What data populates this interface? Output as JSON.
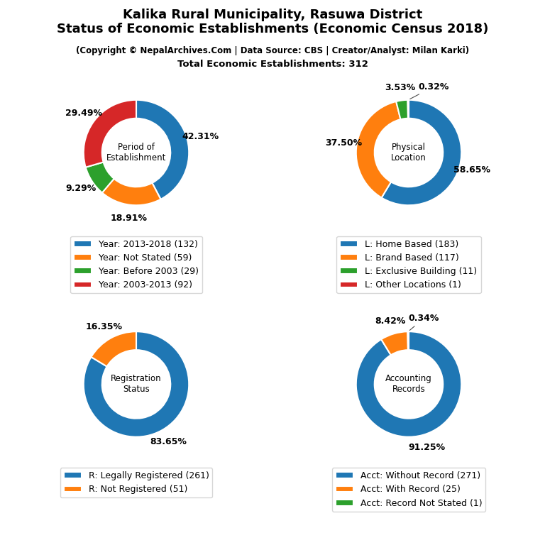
{
  "title": "Kalika Rural Municipality, Rasuwa District\nStatus of Economic Establishments (Economic Census 2018)",
  "subtitle": [
    "(Copyright © NepalArchives.Com | Data Source: CBS | Creator/Analyst: Milan Karki)",
    "Total Economic Establishments: 312"
  ],
  "chart_data": [
    {
      "type": "pie",
      "title": "Period of\nEstablishment",
      "categories": [
        "Year: 2013-2018 (132)",
        "Year: Not Stated (59)",
        "Year: Before 2003 (29)",
        "Year: 2003-2013 (92)"
      ],
      "values": [
        42.31,
        18.91,
        9.29,
        29.49
      ],
      "value_labels": [
        "42.31%",
        "18.91%",
        "9.29%",
        "29.49%"
      ],
      "data_labels": true,
      "legend": "below"
    },
    {
      "type": "pie",
      "title": "Physical\nLocation",
      "categories": [
        "L: Home Based (183)",
        "L: Brand Based (117)",
        "L: Exclusive Building (11)",
        "L: Other Locations (1)"
      ],
      "values": [
        58.65,
        37.5,
        3.53,
        0.32
      ],
      "value_labels": [
        "58.65%",
        "37.50%",
        "3.53%",
        "0.32%"
      ],
      "data_labels": true,
      "legend": "below"
    },
    {
      "type": "pie",
      "title": "Registration\nStatus",
      "categories": [
        "R: Legally Registered (261)",
        "R: Not Registered (51)"
      ],
      "values": [
        83.65,
        16.35
      ],
      "value_labels": [
        "83.65%",
        "16.35%"
      ],
      "data_labels": true,
      "legend": "below"
    },
    {
      "type": "pie",
      "title": "Accounting\nRecords",
      "categories": [
        "Acct: Without Record (271)",
        "Acct: With Record (25)",
        "Acct: Record Not Stated (1)"
      ],
      "values": [
        91.25,
        8.42,
        0.34
      ],
      "value_labels": [
        "91.25%",
        "8.42%",
        "0.34%"
      ],
      "data_labels": true,
      "legend": "below"
    }
  ]
}
